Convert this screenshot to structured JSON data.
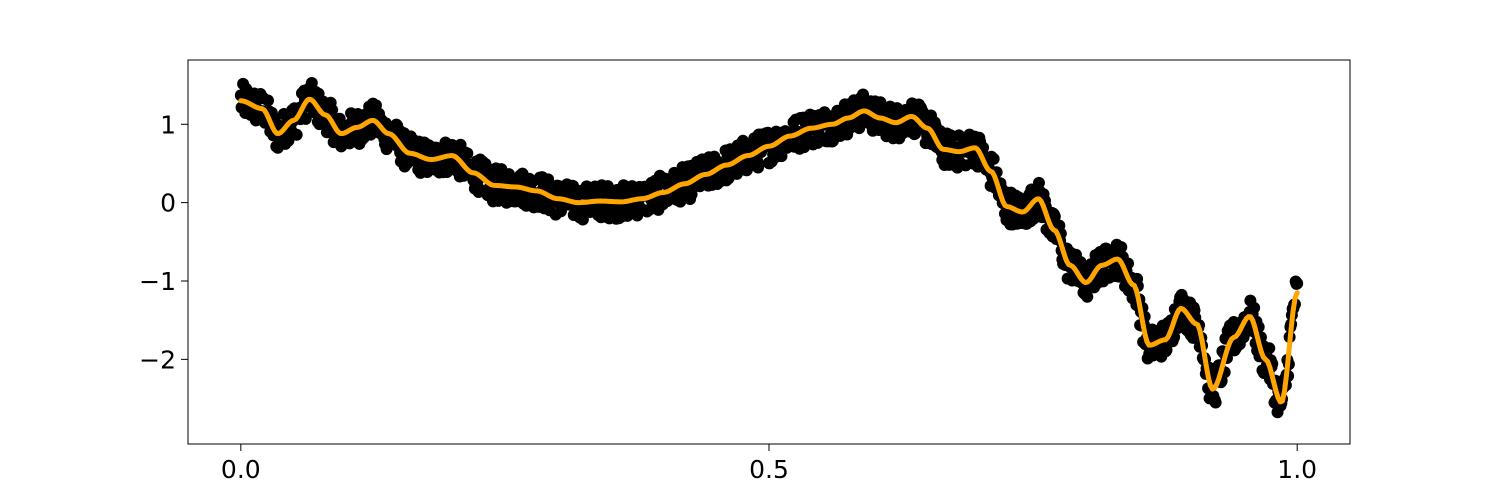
{
  "chart_data": {
    "type": "line",
    "title": "",
    "xlabel": "",
    "ylabel": "",
    "xlim": [
      -0.05,
      1.05
    ],
    "ylim": [
      -3.08,
      1.82
    ],
    "grid": false,
    "x_ticks": [
      {
        "value": 0.0,
        "label": "0.0"
      },
      {
        "value": 0.5,
        "label": "0.5"
      },
      {
        "value": 1.0,
        "label": "1.0"
      }
    ],
    "y_ticks": [
      {
        "value": 1,
        "label": "1"
      },
      {
        "value": 0,
        "label": "0"
      },
      {
        "value": -1,
        "label": "−1"
      },
      {
        "value": -2,
        "label": "−2"
      }
    ],
    "series": [
      {
        "kind": "scatter",
        "color": "#000000",
        "noise_band": 0.22,
        "x": [
          0.0,
          0.02,
          0.035,
          0.05,
          0.065,
          0.08,
          0.095,
          0.11,
          0.125,
          0.14,
          0.16,
          0.18,
          0.2,
          0.22,
          0.24,
          0.26,
          0.28,
          0.3,
          0.32,
          0.34,
          0.36,
          0.38,
          0.4,
          0.42,
          0.44,
          0.46,
          0.48,
          0.5,
          0.52,
          0.54,
          0.56,
          0.575,
          0.59,
          0.605,
          0.62,
          0.635,
          0.65,
          0.665,
          0.68,
          0.695,
          0.71,
          0.725,
          0.74,
          0.755,
          0.77,
          0.785,
          0.8,
          0.815,
          0.83,
          0.845,
          0.86,
          0.875,
          0.89,
          0.905,
          0.92,
          0.94,
          0.955,
          0.97,
          0.985,
          1.0
        ],
        "y": [
          1.3,
          1.2,
          0.88,
          1.05,
          1.32,
          1.12,
          0.88,
          0.96,
          1.05,
          0.88,
          0.63,
          0.55,
          0.6,
          0.38,
          0.22,
          0.2,
          0.15,
          0.05,
          0.0,
          0.02,
          0.01,
          0.05,
          0.13,
          0.24,
          0.36,
          0.48,
          0.6,
          0.72,
          0.85,
          0.95,
          1.0,
          1.08,
          1.17,
          1.08,
          1.02,
          1.1,
          0.95,
          0.68,
          0.65,
          0.7,
          0.4,
          -0.05,
          -0.12,
          0.05,
          -0.35,
          -0.8,
          -1.02,
          -0.8,
          -0.72,
          -1.05,
          -1.82,
          -1.75,
          -1.35,
          -1.55,
          -2.38,
          -1.72,
          -1.45,
          -2.0,
          -2.55,
          -1.15
        ]
      },
      {
        "kind": "line",
        "color": "#ffa500",
        "x": [
          0.0,
          0.02,
          0.035,
          0.05,
          0.065,
          0.08,
          0.095,
          0.11,
          0.125,
          0.14,
          0.16,
          0.18,
          0.2,
          0.22,
          0.24,
          0.26,
          0.28,
          0.3,
          0.32,
          0.34,
          0.36,
          0.38,
          0.4,
          0.42,
          0.44,
          0.46,
          0.48,
          0.5,
          0.52,
          0.54,
          0.56,
          0.575,
          0.59,
          0.605,
          0.62,
          0.635,
          0.65,
          0.665,
          0.68,
          0.695,
          0.71,
          0.725,
          0.74,
          0.755,
          0.77,
          0.785,
          0.8,
          0.815,
          0.83,
          0.845,
          0.86,
          0.875,
          0.89,
          0.905,
          0.92,
          0.94,
          0.955,
          0.97,
          0.985,
          1.0
        ],
        "y": [
          1.3,
          1.2,
          0.88,
          1.05,
          1.32,
          1.12,
          0.88,
          0.96,
          1.05,
          0.88,
          0.63,
          0.55,
          0.6,
          0.38,
          0.22,
          0.2,
          0.15,
          0.05,
          0.0,
          0.02,
          0.01,
          0.05,
          0.13,
          0.24,
          0.36,
          0.48,
          0.6,
          0.72,
          0.85,
          0.95,
          1.0,
          1.08,
          1.17,
          1.08,
          1.02,
          1.1,
          0.95,
          0.68,
          0.65,
          0.7,
          0.4,
          -0.05,
          -0.12,
          0.05,
          -0.35,
          -0.8,
          -1.02,
          -0.8,
          -0.72,
          -1.05,
          -1.82,
          -1.75,
          -1.35,
          -1.55,
          -2.38,
          -1.72,
          -1.45,
          -2.0,
          -2.55,
          -1.15
        ]
      }
    ]
  }
}
